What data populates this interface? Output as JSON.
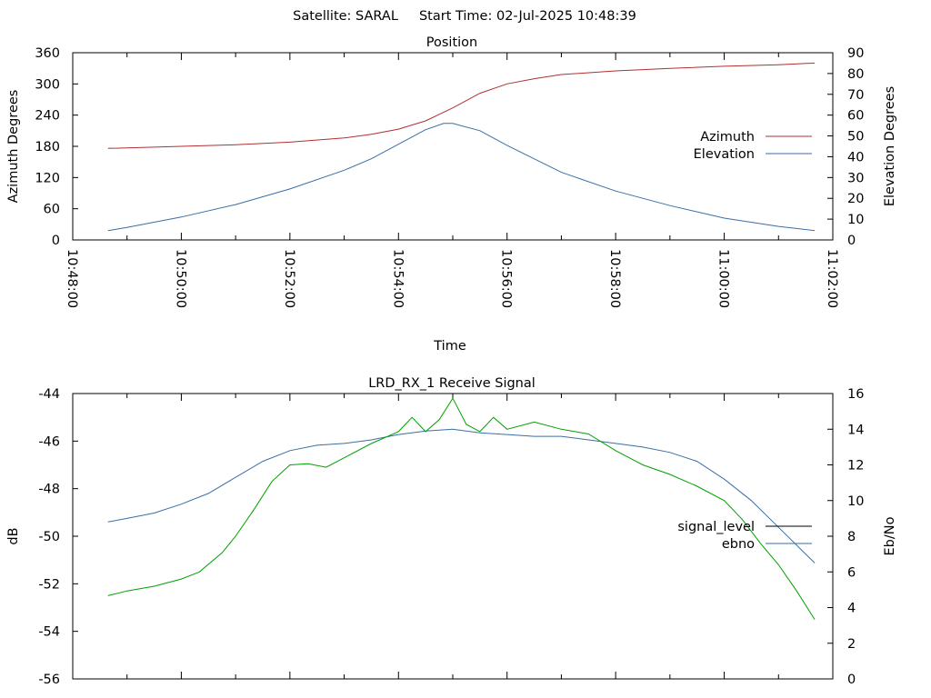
{
  "header": {
    "title": "Satellite: SARAL     Start Time: 02-Jul-2025 10:48:39"
  },
  "chart_data": [
    {
      "type": "line",
      "title": "Position",
      "xlabel": "Time",
      "ylabel": "Azimuth Degrees",
      "y2label": "Elevation Degrees",
      "ylim": [
        0,
        360
      ],
      "y2lim": [
        0,
        90
      ],
      "xlim": [
        "10:48:00",
        "11:02:00"
      ],
      "y_ticks": [
        "0",
        "60",
        "120",
        "180",
        "240",
        "300",
        "360"
      ],
      "y2_ticks": [
        "0",
        "10",
        "20",
        "30",
        "40",
        "50",
        "60",
        "70",
        "80",
        "90"
      ],
      "x_ticks": [
        "10:48:00",
        "10:50:00",
        "10:52:00",
        "10:54:00",
        "10:56:00",
        "10:58:00",
        "11:00:00",
        "11:02:00"
      ],
      "legend_position": "right",
      "series": [
        {
          "name": "Azimuth",
          "axis": "left",
          "color": "#b03030",
          "x": [
            "10:48:39",
            "10:50:00",
            "10:51:00",
            "10:52:00",
            "10:53:00",
            "10:53:30",
            "10:54:00",
            "10:54:30",
            "10:55:00",
            "10:55:30",
            "10:56:00",
            "10:56:30",
            "10:57:00",
            "10:58:00",
            "10:59:00",
            "11:00:00",
            "11:01:00",
            "11:01:40"
          ],
          "values": [
            176,
            180,
            183,
            188,
            196,
            203,
            213,
            229,
            254,
            282,
            300,
            310,
            318,
            325,
            330,
            334,
            337,
            340
          ]
        },
        {
          "name": "Elevation",
          "axis": "right",
          "color": "#3a6ea5",
          "x": [
            "10:48:39",
            "10:49:00",
            "10:50:00",
            "10:51:00",
            "10:52:00",
            "10:53:00",
            "10:53:30",
            "10:54:00",
            "10:54:30",
            "10:54:50",
            "10:55:00",
            "10:55:30",
            "10:56:00",
            "10:57:00",
            "10:58:00",
            "10:59:00",
            "11:00:00",
            "11:01:00",
            "11:01:40"
          ],
          "values": [
            4.5,
            6,
            11,
            17,
            24.5,
            33.5,
            39,
            46,
            53,
            56,
            56,
            52.5,
            45.5,
            32.5,
            23.5,
            16.5,
            10.5,
            6.5,
            4.5
          ]
        }
      ]
    },
    {
      "type": "line",
      "title": "LRD_RX_1 Receive Signal",
      "xlabel": "",
      "ylabel": "dB",
      "y2label": "Eb/No",
      "ylim": [
        -56,
        -44
      ],
      "y2lim": [
        0,
        16
      ],
      "xlim": [
        "10:48:00",
        "11:02:00"
      ],
      "y_ticks": [
        "-56",
        "-54",
        "-52",
        "-50",
        "-48",
        "-46",
        "-44"
      ],
      "y2_ticks": [
        "0",
        "2",
        "4",
        "6",
        "8",
        "10",
        "12",
        "14",
        "16"
      ],
      "legend_position": "right",
      "series": [
        {
          "name": "signal_level",
          "axis": "left",
          "color": "#000000",
          "x": [],
          "values": []
        },
        {
          "name": "ebno",
          "axis": "right",
          "color": "#3a6ea5",
          "x": [
            "10:48:39",
            "10:49:00",
            "10:49:30",
            "10:50:00",
            "10:50:30",
            "10:51:00",
            "10:51:30",
            "10:52:00",
            "10:52:30",
            "10:53:00",
            "10:53:30",
            "10:54:00",
            "10:54:30",
            "10:55:00",
            "10:55:30",
            "10:56:00",
            "10:56:30",
            "10:57:00",
            "10:57:30",
            "10:58:00",
            "10:58:30",
            "10:59:00",
            "10:59:30",
            "11:00:00",
            "11:00:30",
            "11:01:00",
            "11:01:30",
            "11:01:40"
          ],
          "values": [
            8.8,
            9.0,
            9.3,
            9.8,
            10.4,
            11.3,
            12.2,
            12.8,
            13.1,
            13.2,
            13.4,
            13.7,
            13.9,
            14.0,
            13.8,
            13.7,
            13.6,
            13.6,
            13.4,
            13.2,
            13.0,
            12.7,
            12.2,
            11.2,
            10.0,
            8.5,
            7.0,
            6.5
          ]
        },
        {
          "name": "",
          "axis": "left",
          "color": "#00a000",
          "x": [
            "10:48:39",
            "10:49:00",
            "10:49:30",
            "10:50:00",
            "10:50:20",
            "10:50:45",
            "10:51:00",
            "10:51:20",
            "10:51:40",
            "10:52:00",
            "10:52:20",
            "10:52:40",
            "10:53:00",
            "10:53:30",
            "10:54:00",
            "10:54:15",
            "10:54:30",
            "10:54:45",
            "10:55:00",
            "10:55:15",
            "10:55:30",
            "10:55:45",
            "10:56:00",
            "10:56:30",
            "10:57:00",
            "10:57:30",
            "10:58:00",
            "10:58:30",
            "10:59:00",
            "10:59:30",
            "11:00:00",
            "11:00:20",
            "11:00:40",
            "11:01:00",
            "11:01:20",
            "11:01:40"
          ],
          "values": [
            -52.5,
            -52.3,
            -52.1,
            -51.8,
            -51.5,
            -50.7,
            -50.0,
            -48.9,
            -47.7,
            -47.0,
            -46.95,
            -47.1,
            -46.7,
            -46.1,
            -45.6,
            -45.0,
            -45.6,
            -45.1,
            -44.2,
            -45.3,
            -45.6,
            -45.0,
            -45.5,
            -45.2,
            -45.5,
            -45.7,
            -46.4,
            -47.0,
            -47.4,
            -47.9,
            -48.5,
            -49.3,
            -50.3,
            -51.2,
            -52.3,
            -53.5
          ]
        }
      ]
    }
  ]
}
